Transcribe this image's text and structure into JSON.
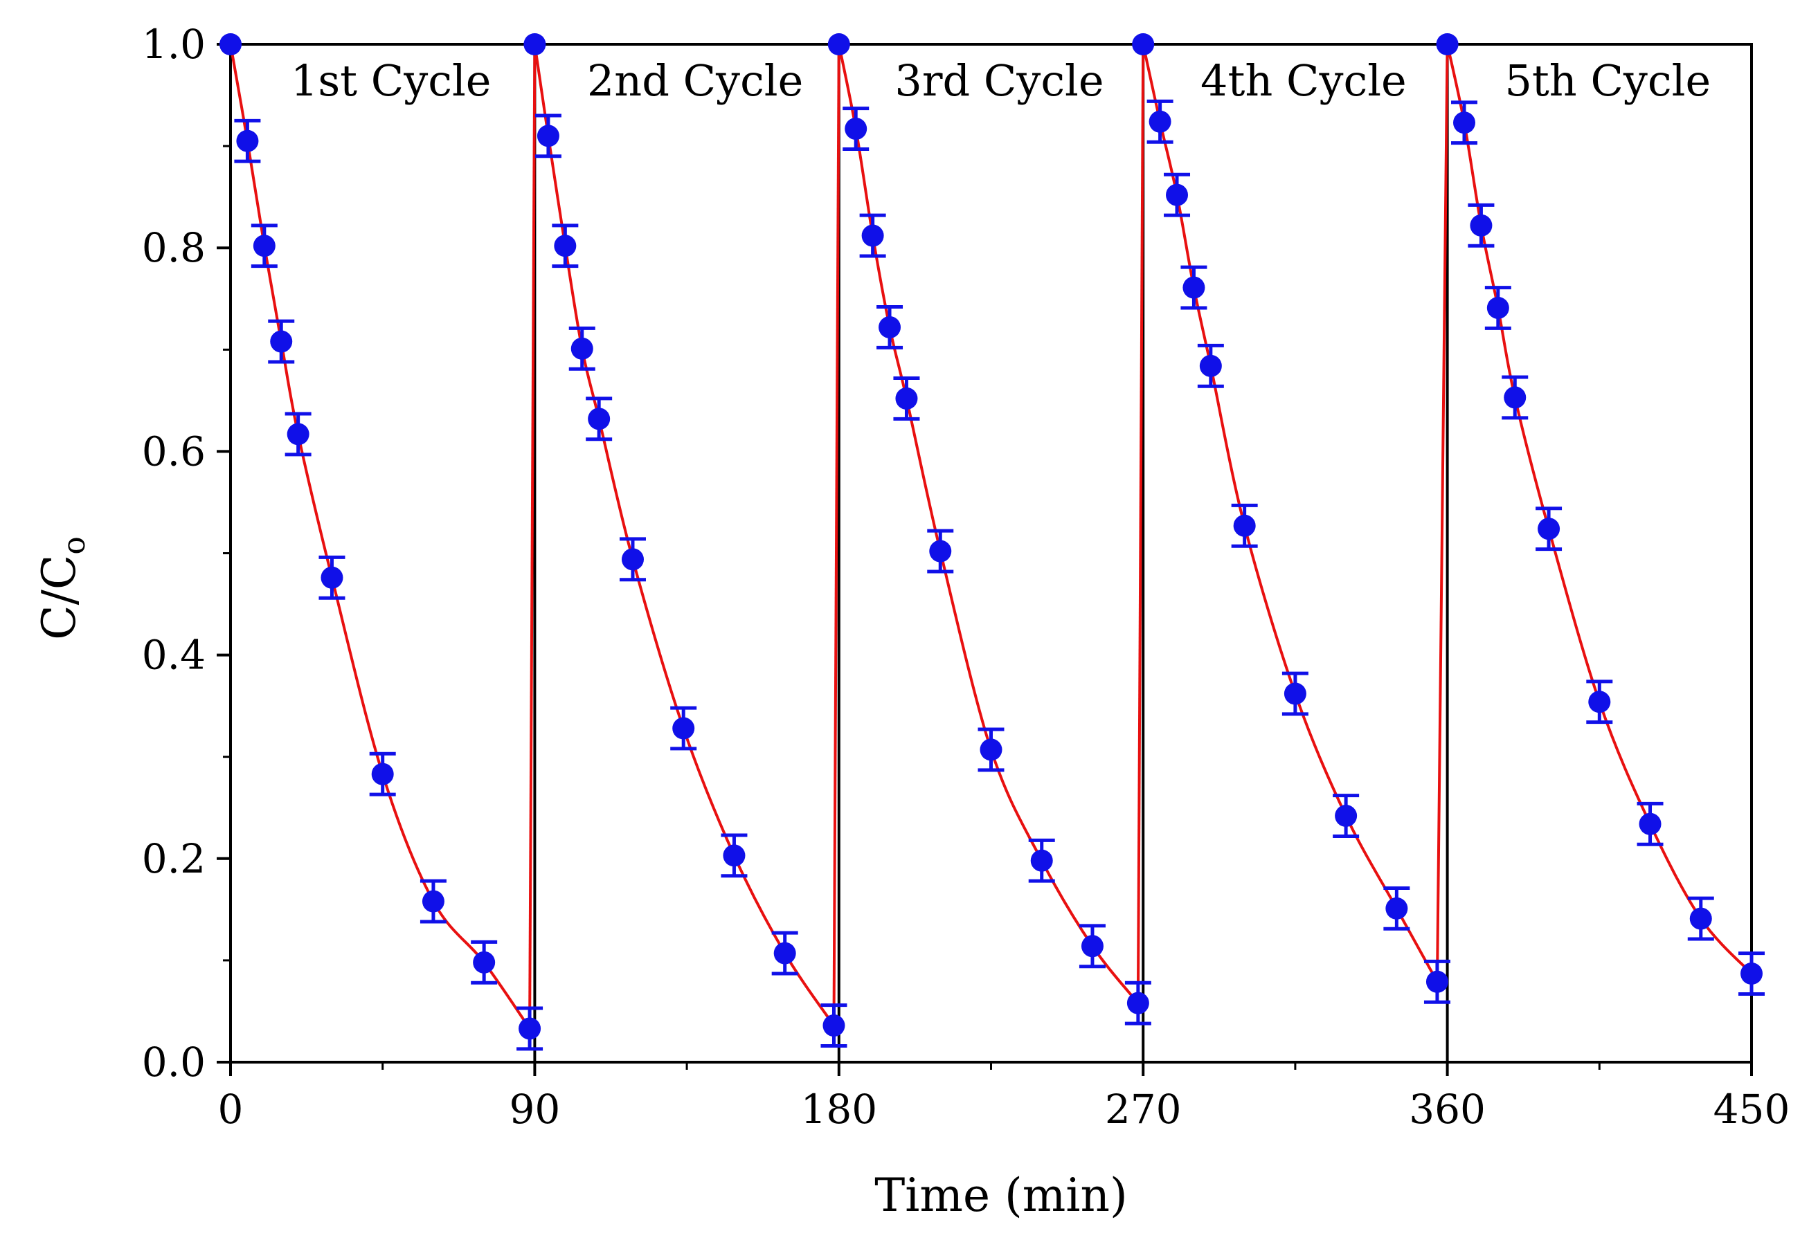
{
  "chart_data": {
    "type": "scatter",
    "xlabel": "Time (min)",
    "ylabel": {
      "main": "C/C",
      "subscript": "o"
    },
    "xlim": [
      0,
      450
    ],
    "ylim": [
      0,
      1.0
    ],
    "x_ticks": [
      "0",
      "90",
      "180",
      "270",
      "360",
      "450"
    ],
    "y_ticks": [
      "0.0",
      "0.2",
      "0.4",
      "0.6",
      "0.8",
      "1.0"
    ],
    "cycle_boundaries": [
      90,
      180,
      270,
      360
    ],
    "colors": {
      "points": "#1010e8",
      "fit": "#e81010",
      "axis": "#000000"
    },
    "cycles": [
      {
        "label": "1st Cycle",
        "x": [
          0,
          5,
          10,
          15,
          20,
          30,
          45,
          60,
          75,
          88.5
        ],
        "y": [
          1.0,
          0.905,
          0.802,
          0.708,
          0.617,
          0.476,
          0.283,
          0.158,
          0.098,
          0.033
        ],
        "err": [
          0,
          0.02,
          0.02,
          0.02,
          0.02,
          0.02,
          0.02,
          0.02,
          0.02,
          0.02
        ]
      },
      {
        "label": "2nd Cycle",
        "x": [
          90,
          94,
          99,
          104,
          109,
          119,
          134,
          149,
          164,
          178.5
        ],
        "y": [
          1.0,
          0.91,
          0.802,
          0.701,
          0.632,
          0.494,
          0.328,
          0.203,
          0.107,
          0.036
        ],
        "err": [
          0,
          0.02,
          0.02,
          0.02,
          0.02,
          0.02,
          0.02,
          0.02,
          0.02,
          0.02
        ]
      },
      {
        "label": "3rd Cycle",
        "x": [
          180,
          185,
          190,
          195,
          200,
          210,
          225,
          240,
          255,
          268.5
        ],
        "y": [
          1.0,
          0.917,
          0.812,
          0.722,
          0.652,
          0.502,
          0.307,
          0.198,
          0.114,
          0.058
        ],
        "err": [
          0,
          0.02,
          0.02,
          0.02,
          0.02,
          0.02,
          0.02,
          0.02,
          0.02,
          0.02
        ]
      },
      {
        "label": "4th Cycle",
        "x": [
          270,
          275,
          280,
          285,
          290,
          300,
          315,
          330,
          345,
          357
        ],
        "y": [
          1.0,
          0.924,
          0.852,
          0.761,
          0.684,
          0.527,
          0.362,
          0.242,
          0.151,
          0.079
        ],
        "err": [
          0,
          0.02,
          0.02,
          0.02,
          0.02,
          0.02,
          0.02,
          0.02,
          0.02,
          0.02
        ]
      },
      {
        "label": "5th Cycle",
        "x": [
          360,
          365,
          370,
          375,
          380,
          390,
          405,
          420,
          435,
          450
        ],
        "y": [
          1.0,
          0.923,
          0.822,
          0.741,
          0.653,
          0.524,
          0.354,
          0.234,
          0.141,
          0.087
        ],
        "err": [
          0,
          0.02,
          0.02,
          0.02,
          0.02,
          0.02,
          0.02,
          0.02,
          0.02,
          0.02
        ]
      }
    ]
  }
}
